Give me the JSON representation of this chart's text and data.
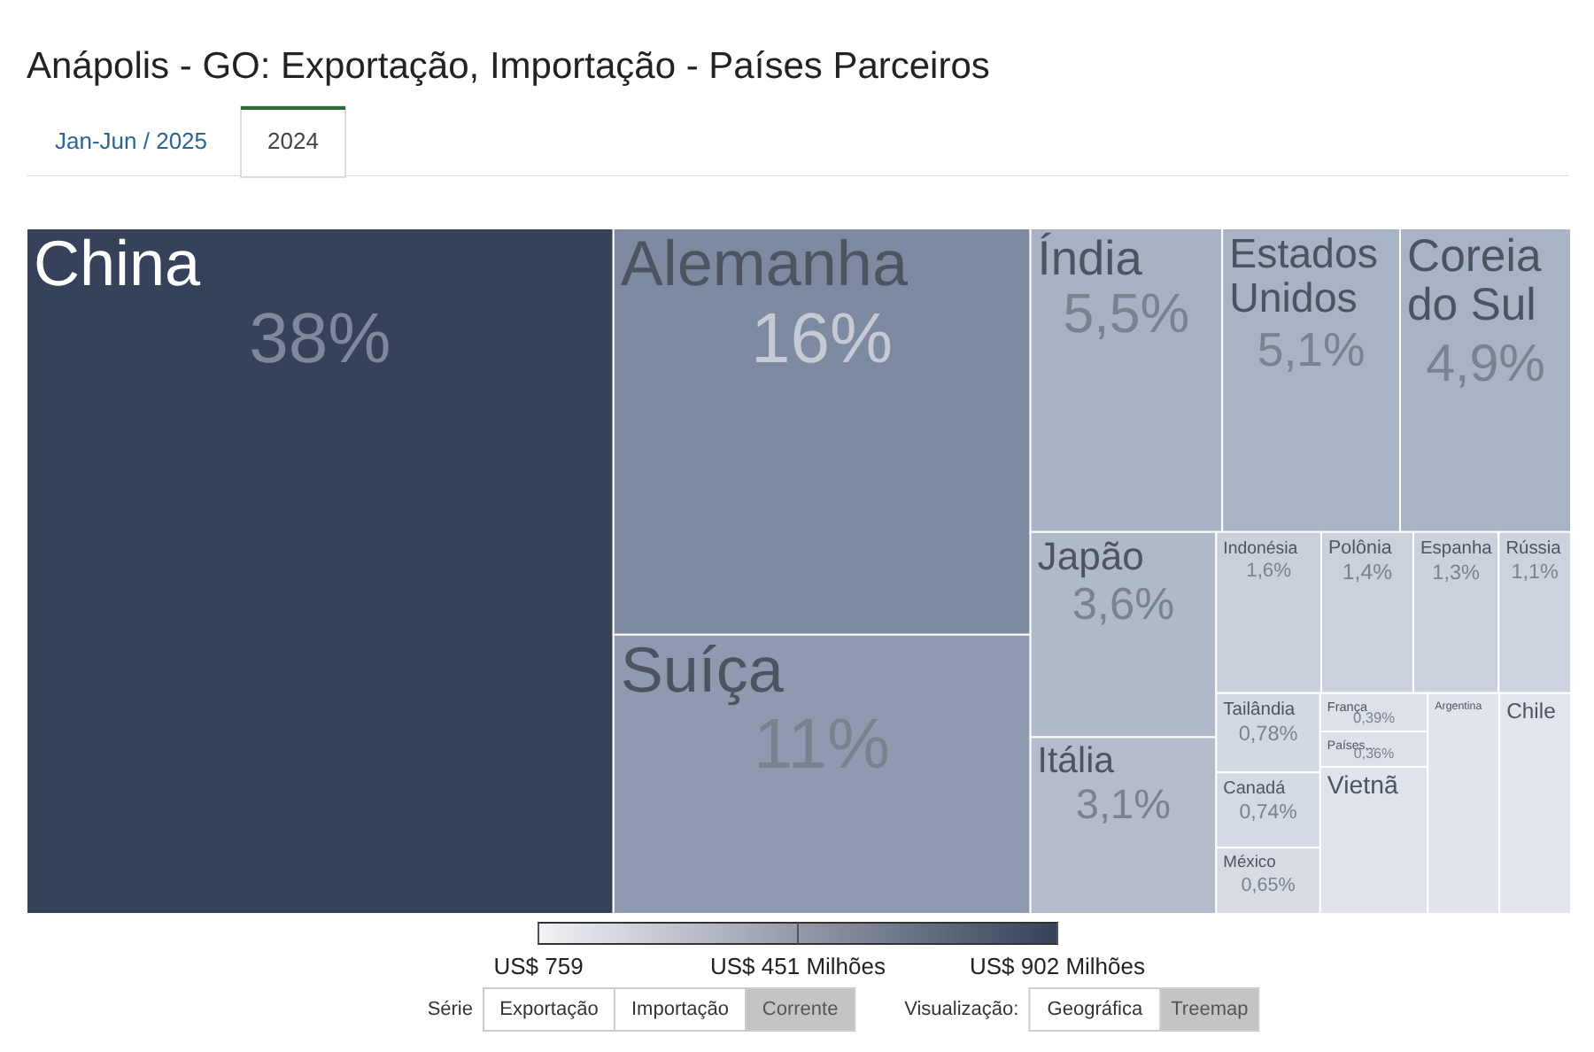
{
  "chart_data": {
    "type": "other",
    "title": "Anápolis - GO: Exportação, Importação - Países Parceiros",
    "categories": [
      "China",
      "Alemanha",
      "Suíça",
      "Índia",
      "Estados Unidos",
      "Coreia do Sul",
      "Japão",
      "Itália",
      "Indonésia",
      "Polônia",
      "Espanha",
      "Rússia",
      "Tailândia",
      "Canadá",
      "México",
      "França",
      "Países...",
      "Vietnã",
      "Argentina",
      "Chile"
    ],
    "values": [
      38,
      16,
      11,
      5.5,
      5.1,
      4.9,
      3.6,
      3.1,
      1.6,
      1.4,
      1.3,
      1.1,
      0.78,
      0.74,
      0.65,
      0.39,
      0.36,
      null,
      null,
      null
    ],
    "value_labels": [
      "38%",
      "16%",
      "11%",
      "5,5%",
      "5,1%",
      "4,9%",
      "3,6%",
      "3,1%",
      "1,6%",
      "1,4%",
      "1,3%",
      "1,1%",
      "0,78%",
      "0,74%",
      "0,65%",
      "0,39%",
      "0,36%",
      null,
      null,
      null
    ],
    "colors": [
      "#36425a",
      "#7d8aa1",
      "#8f9ab0",
      "#a8b2c5",
      "#a9b3c6",
      "#a9b3c6",
      "#b0b9ca",
      "#b4bccc",
      "#c9d0dc",
      "#cad1dd",
      "#cbd2dd",
      "#ccd3de",
      "#d3d9e3",
      "#d4dae3",
      "#d6dbe4",
      "#dde2ea",
      "#dde2ea",
      "#dfe3eb",
      "#e0e4ec",
      "#e1e5ed"
    ],
    "annotations": [
      "US$ 759",
      "US$ 451 Milhões",
      "US$ 902 Milhões",
      "Jan-Jun / 2025",
      "2024",
      "Série",
      "Exportação",
      "Importação",
      "Corrente",
      "Visualização:",
      "Geográfica",
      "Treemap"
    ]
  }
}
